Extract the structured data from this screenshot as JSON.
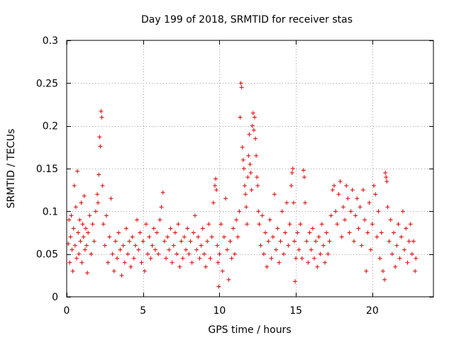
{
  "chart_data": {
    "type": "scatter",
    "title": "Day 199 of 2018, SRMTID for receiver stas",
    "xlabel": "GPS time / hours",
    "ylabel": "SRMTID / TECUs",
    "xlim": [
      0,
      24
    ],
    "ylim": [
      0,
      0.3
    ],
    "x_ticks": [
      0,
      5,
      10,
      15,
      20
    ],
    "x_tick_labels": [
      "0",
      "5",
      "10",
      "15",
      "20"
    ],
    "y_ticks": [
      0,
      0.05,
      0.1,
      0.15,
      0.2,
      0.25,
      0.3
    ],
    "y_tick_labels": [
      "0",
      "0.05",
      "0.1",
      "0.15",
      "0.2",
      "0.25",
      "0.3"
    ],
    "grid": true,
    "marker": "plus",
    "color": "#e00000",
    "series": [
      {
        "name": "SRMTID",
        "points": [
          [
            0.1,
            0.062
          ],
          [
            0.15,
            0.09
          ],
          [
            0.2,
            0.04
          ],
          [
            0.25,
            0.07
          ],
          [
            0.3,
            0.095
          ],
          [
            0.35,
            0.055
          ],
          [
            0.4,
            0.03
          ],
          [
            0.45,
            0.08
          ],
          [
            0.5,
            0.13
          ],
          [
            0.55,
            0.06
          ],
          [
            0.6,
            0.105
          ],
          [
            0.65,
            0.045
          ],
          [
            0.7,
            0.147
          ],
          [
            0.75,
            0.075
          ],
          [
            0.8,
            0.05
          ],
          [
            0.85,
            0.09
          ],
          [
            0.9,
            0.065
          ],
          [
            0.95,
            0.11
          ],
          [
            1.0,
            0.04
          ],
          [
            1.05,
            0.085
          ],
          [
            1.1,
            0.07
          ],
          [
            1.15,
            0.118
          ],
          [
            1.2,
            0.055
          ],
          [
            1.25,
            0.08
          ],
          [
            1.3,
            0.06
          ],
          [
            1.35,
            0.028
          ],
          [
            1.4,
            0.075
          ],
          [
            1.5,
            0.095
          ],
          [
            1.6,
            0.05
          ],
          [
            1.7,
            0.085
          ],
          [
            1.8,
            0.065
          ],
          [
            1.9,
            0.1
          ],
          [
            2.0,
            0.12
          ],
          [
            2.05,
            0.11
          ],
          [
            2.1,
            0.143
          ],
          [
            2.15,
            0.187
          ],
          [
            2.2,
            0.176
          ],
          [
            2.25,
            0.217
          ],
          [
            2.3,
            0.21
          ],
          [
            2.35,
            0.13
          ],
          [
            2.4,
            0.085
          ],
          [
            2.5,
            0.06
          ],
          [
            2.6,
            0.095
          ],
          [
            2.7,
            0.04
          ],
          [
            2.8,
            0.07
          ],
          [
            2.9,
            0.115
          ],
          [
            3.0,
            0.05
          ],
          [
            3.1,
            0.03
          ],
          [
            3.2,
            0.065
          ],
          [
            3.3,
            0.045
          ],
          [
            3.4,
            0.075
          ],
          [
            3.5,
            0.055
          ],
          [
            3.6,
            0.025
          ],
          [
            3.7,
            0.06
          ],
          [
            3.8,
            0.04
          ],
          [
            3.9,
            0.08
          ],
          [
            4.0,
            0.05
          ],
          [
            4.1,
            0.065
          ],
          [
            4.2,
            0.035
          ],
          [
            4.3,
            0.07
          ],
          [
            4.4,
            0.045
          ],
          [
            4.5,
            0.06
          ],
          [
            4.6,
            0.09
          ],
          [
            4.7,
            0.055
          ],
          [
            4.8,
            0.075
          ],
          [
            4.9,
            0.04
          ],
          [
            5.0,
            0.065
          ],
          [
            5.1,
            0.03
          ],
          [
            5.2,
            0.085
          ],
          [
            5.3,
            0.05
          ],
          [
            5.4,
            0.07
          ],
          [
            5.5,
            0.045
          ],
          [
            5.6,
            0.06
          ],
          [
            5.7,
            0.08
          ],
          [
            5.8,
            0.055
          ],
          [
            5.9,
            0.075
          ],
          [
            6.0,
            0.05
          ],
          [
            6.1,
            0.09
          ],
          [
            6.2,
            0.105
          ],
          [
            6.3,
            0.122
          ],
          [
            6.4,
            0.065
          ],
          [
            6.5,
            0.045
          ],
          [
            6.6,
            0.07
          ],
          [
            6.7,
            0.055
          ],
          [
            6.8,
            0.08
          ],
          [
            6.9,
            0.04
          ],
          [
            7.0,
            0.06
          ],
          [
            7.1,
            0.075
          ],
          [
            7.2,
            0.05
          ],
          [
            7.3,
            0.085
          ],
          [
            7.4,
            0.035
          ],
          [
            7.5,
            0.065
          ],
          [
            7.6,
            0.045
          ],
          [
            7.7,
            0.07
          ],
          [
            7.8,
            0.055
          ],
          [
            7.9,
            0.08
          ],
          [
            8.0,
            0.05
          ],
          [
            8.1,
            0.065
          ],
          [
            8.2,
            0.04
          ],
          [
            8.3,
            0.075
          ],
          [
            8.4,
            0.095
          ],
          [
            8.5,
            0.055
          ],
          [
            8.6,
            0.07
          ],
          [
            8.7,
            0.045
          ],
          [
            8.8,
            0.06
          ],
          [
            8.9,
            0.08
          ],
          [
            9.0,
            0.05
          ],
          [
            9.1,
            0.035
          ],
          [
            9.2,
            0.065
          ],
          [
            9.3,
            0.085
          ],
          [
            9.4,
            0.045
          ],
          [
            9.5,
            0.07
          ],
          [
            9.6,
            0.11
          ],
          [
            9.7,
            0.13
          ],
          [
            9.75,
            0.138
          ],
          [
            9.8,
            0.125
          ],
          [
            9.85,
            0.06
          ],
          [
            9.9,
            0.04
          ],
          [
            9.95,
            0.012
          ],
          [
            10.0,
            0.05
          ],
          [
            10.1,
            0.085
          ],
          [
            10.2,
            0.03
          ],
          [
            10.3,
            0.07
          ],
          [
            10.4,
            0.115
          ],
          [
            10.5,
            0.055
          ],
          [
            10.6,
            0.02
          ],
          [
            10.7,
            0.065
          ],
          [
            10.8,
            0.045
          ],
          [
            10.9,
            0.08
          ],
          [
            11.0,
            0.05
          ],
          [
            11.1,
            0.09
          ],
          [
            11.2,
            0.07
          ],
          [
            11.3,
            0.1
          ],
          [
            11.35,
            0.21
          ],
          [
            11.4,
            0.25
          ],
          [
            11.45,
            0.245
          ],
          [
            11.5,
            0.175
          ],
          [
            11.55,
            0.16
          ],
          [
            11.6,
            0.15
          ],
          [
            11.65,
            0.13
          ],
          [
            11.7,
            0.12
          ],
          [
            11.75,
            0.105
          ],
          [
            11.8,
            0.085
          ],
          [
            11.85,
            0.14
          ],
          [
            11.9,
            0.165
          ],
          [
            11.95,
            0.19
          ],
          [
            12.0,
            0.155
          ],
          [
            12.05,
            0.145
          ],
          [
            12.1,
            0.125
          ],
          [
            12.15,
            0.2
          ],
          [
            12.2,
            0.215
          ],
          [
            12.25,
            0.195
          ],
          [
            12.3,
            0.21
          ],
          [
            12.35,
            0.185
          ],
          [
            12.4,
            0.165
          ],
          [
            12.45,
            0.14
          ],
          [
            12.5,
            0.13
          ],
          [
            12.55,
            0.1
          ],
          [
            12.6,
            0.085
          ],
          [
            12.7,
            0.06
          ],
          [
            12.8,
            0.095
          ],
          [
            12.9,
            0.05
          ],
          [
            13.0,
            0.075
          ],
          [
            13.1,
            0.035
          ],
          [
            13.2,
            0.065
          ],
          [
            13.3,
            0.09
          ],
          [
            13.4,
            0.045
          ],
          [
            13.5,
            0.07
          ],
          [
            13.6,
            0.12
          ],
          [
            13.7,
            0.055
          ],
          [
            13.8,
            0.08
          ],
          [
            13.9,
            0.04
          ],
          [
            14.0,
            0.065
          ],
          [
            14.1,
            0.1
          ],
          [
            14.2,
            0.05
          ],
          [
            14.3,
            0.075
          ],
          [
            14.4,
            0.11
          ],
          [
            14.5,
            0.06
          ],
          [
            14.6,
            0.085
          ],
          [
            14.7,
            0.13
          ],
          [
            14.75,
            0.145
          ],
          [
            14.8,
            0.15
          ],
          [
            14.85,
            0.11
          ],
          [
            14.9,
            0.065
          ],
          [
            14.95,
            0.018
          ],
          [
            15.0,
            0.045
          ],
          [
            15.1,
            0.075
          ],
          [
            15.2,
            0.055
          ],
          [
            15.3,
            0.085
          ],
          [
            15.4,
            0.045
          ],
          [
            15.5,
            0.148
          ],
          [
            15.55,
            0.14
          ],
          [
            15.6,
            0.11
          ],
          [
            15.7,
            0.065
          ],
          [
            15.8,
            0.04
          ],
          [
            15.9,
            0.075
          ],
          [
            16.0,
            0.055
          ],
          [
            16.1,
            0.08
          ],
          [
            16.2,
            0.045
          ],
          [
            16.3,
            0.065
          ],
          [
            16.4,
            0.035
          ],
          [
            16.5,
            0.07
          ],
          [
            16.6,
            0.05
          ],
          [
            16.7,
            0.085
          ],
          [
            16.8,
            0.06
          ],
          [
            16.9,
            0.04
          ],
          [
            17.0,
            0.075
          ],
          [
            17.1,
            0.05
          ],
          [
            17.2,
            0.065
          ],
          [
            17.3,
            0.095
          ],
          [
            17.4,
            0.125
          ],
          [
            17.5,
            0.13
          ],
          [
            17.6,
            0.1
          ],
          [
            17.7,
            0.085
          ],
          [
            17.8,
            0.12
          ],
          [
            17.9,
            0.135
          ],
          [
            18.0,
            0.07
          ],
          [
            18.1,
            0.105
          ],
          [
            18.2,
            0.09
          ],
          [
            18.3,
            0.13
          ],
          [
            18.4,
            0.115
          ],
          [
            18.5,
            0.075
          ],
          [
            18.6,
            0.1
          ],
          [
            18.7,
            0.125
          ],
          [
            18.8,
            0.065
          ],
          [
            18.9,
            0.095
          ],
          [
            19.0,
            0.115
          ],
          [
            19.1,
            0.08
          ],
          [
            19.2,
            0.105
          ],
          [
            19.3,
            0.06
          ],
          [
            19.4,
            0.125
          ],
          [
            19.5,
            0.09
          ],
          [
            19.6,
            0.03
          ],
          [
            19.7,
            0.075
          ],
          [
            19.8,
            0.11
          ],
          [
            19.9,
            0.055
          ],
          [
            20.0,
            0.085
          ],
          [
            20.1,
            0.13
          ],
          [
            20.2,
            0.12
          ],
          [
            20.3,
            0.07
          ],
          [
            20.4,
            0.1
          ],
          [
            20.5,
            0.045
          ],
          [
            20.6,
            0.075
          ],
          [
            20.7,
            0.03
          ],
          [
            20.8,
            0.02
          ],
          [
            20.85,
            0.145
          ],
          [
            20.9,
            0.14
          ],
          [
            20.95,
            0.135
          ],
          [
            21.0,
            0.105
          ],
          [
            21.1,
            0.065
          ],
          [
            21.2,
            0.09
          ],
          [
            21.3,
            0.05
          ],
          [
            21.4,
            0.075
          ],
          [
            21.5,
            0.035
          ],
          [
            21.6,
            0.06
          ],
          [
            21.7,
            0.085
          ],
          [
            21.8,
            0.045
          ],
          [
            21.9,
            0.07
          ],
          [
            22.0,
            0.1
          ],
          [
            22.1,
            0.055
          ],
          [
            22.2,
            0.08
          ],
          [
            22.3,
            0.04
          ],
          [
            22.4,
            0.065
          ],
          [
            22.5,
            0.085
          ],
          [
            22.6,
            0.05
          ],
          [
            22.7,
            0.065
          ],
          [
            22.8,
            0.03
          ],
          [
            22.85,
            0.045
          ]
        ]
      }
    ]
  }
}
